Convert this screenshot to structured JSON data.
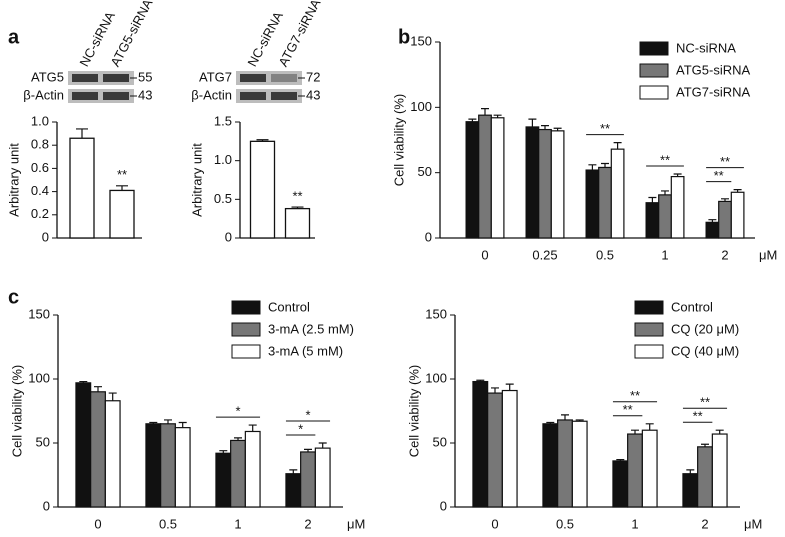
{
  "chart_data": [
    {
      "type": "bar",
      "panel": "a",
      "blot": {
        "rows": [
          "ATG5",
          "β-Actin"
        ],
        "sizes": [
          55,
          43
        ]
      },
      "categories": [
        "NC-siRNA",
        "ATG5-siRNA"
      ],
      "values": [
        0.86,
        0.41
      ],
      "errors": [
        0.08,
        0.04
      ],
      "color": "#ffffff",
      "ylabel": "Arbitrary unit",
      "ylim": [
        0,
        1.0
      ],
      "yticks": [
        0,
        0.2,
        0.4,
        0.6,
        0.8,
        {
          "value": 1,
          "label": "1.0"
        }
      ],
      "annotations": [
        {
          "label": "**",
          "category": 1
        }
      ]
    },
    {
      "type": "bar",
      "blot": {
        "rows": [
          "ATG7",
          "β-Actin"
        ],
        "sizes": [
          72,
          43
        ]
      },
      "categories": [
        "NC-siRNA",
        "ATG7-siRNA"
      ],
      "values": [
        1.25,
        0.38
      ],
      "errors": [
        0.02,
        0.02
      ],
      "color": "#ffffff",
      "ylabel": "Arbitrary unit",
      "ylim": [
        0,
        1.5
      ],
      "yticks": [
        0,
        0.5,
        {
          "value": 1,
          "label": "1.0"
        },
        1.5
      ],
      "annotations": [
        {
          "label": "**",
          "category": 1
        }
      ]
    },
    {
      "type": "grouped-bar",
      "panel": "b",
      "categories": [
        "0",
        "0.25",
        "0.5",
        "1",
        "2"
      ],
      "unit": "μM",
      "series": [
        {
          "name": "NC-siRNA",
          "color": "#111111",
          "values": [
            89,
            85,
            52,
            27,
            12
          ],
          "errors": [
            2,
            6,
            4,
            4,
            2
          ]
        },
        {
          "name": "ATG5-siRNA",
          "color": "#777777",
          "values": [
            94,
            83,
            54,
            33,
            28
          ],
          "errors": [
            5,
            3,
            3,
            3,
            2
          ]
        },
        {
          "name": "ATG7-siRNA",
          "color": "#ffffff",
          "values": [
            92,
            82,
            68,
            47,
            35
          ],
          "errors": [
            2,
            2,
            5,
            2,
            2
          ]
        }
      ],
      "ylabel": "Cell viability (%)",
      "ylim": [
        0,
        150
      ],
      "yticks": [
        0,
        50,
        100,
        150
      ],
      "legend": "top-right",
      "annotations": [
        {
          "label": "**",
          "category": 2,
          "between": [
            0,
            2
          ]
        },
        {
          "label": "**",
          "category": 3,
          "between": [
            0,
            2
          ]
        },
        {
          "label": "**",
          "category": 4,
          "between": [
            0,
            1
          ]
        },
        {
          "label": "**",
          "category": 4,
          "between": [
            0,
            2
          ]
        }
      ]
    },
    {
      "type": "grouped-bar",
      "panel": "c",
      "categories": [
        "0",
        "0.5",
        "1",
        "2"
      ],
      "unit": "μM",
      "series": [
        {
          "name": "Control",
          "color": "#111111",
          "values": [
            97,
            65,
            42,
            26
          ],
          "errors": [
            1,
            1,
            2,
            3
          ]
        },
        {
          "name": "3-mA (2.5 mM)",
          "color": "#777777",
          "values": [
            90,
            65,
            52,
            43
          ],
          "errors": [
            4,
            3,
            2,
            2
          ]
        },
        {
          "name": "3-mA (5 mM)",
          "color": "#ffffff",
          "values": [
            83,
            62,
            59,
            46
          ],
          "errors": [
            6,
            4,
            5,
            4
          ]
        }
      ],
      "ylabel": "Cell viability (%)",
      "ylim": [
        0,
        150
      ],
      "yticks": [
        0,
        50,
        100,
        150
      ],
      "legend": "top-left",
      "annotations": [
        {
          "label": "*",
          "category": 2,
          "between": [
            0,
            2
          ]
        },
        {
          "label": "*",
          "category": 3,
          "between": [
            0,
            1
          ]
        },
        {
          "label": "*",
          "category": 3,
          "between": [
            0,
            2
          ]
        }
      ]
    },
    {
      "type": "grouped-bar",
      "categories": [
        "0",
        "0.5",
        "1",
        "2"
      ],
      "unit": "μM",
      "series": [
        {
          "name": "Control",
          "color": "#111111",
          "values": [
            98,
            65,
            36,
            26
          ],
          "errors": [
            1,
            1,
            1,
            3
          ]
        },
        {
          "name": "CQ (20 μM)",
          "color": "#777777",
          "values": [
            89,
            68,
            57,
            47
          ],
          "errors": [
            4,
            4,
            3,
            2
          ]
        },
        {
          "name": "CQ (40 μM)",
          "color": "#ffffff",
          "values": [
            91,
            67,
            60,
            57
          ],
          "errors": [
            5,
            1,
            5,
            3
          ]
        }
      ],
      "ylabel": "Cell viability (%)",
      "ylim": [
        0,
        150
      ],
      "yticks": [
        0,
        50,
        100,
        150
      ],
      "legend": "top-right",
      "annotations": [
        {
          "label": "**",
          "category": 2,
          "between": [
            0,
            1
          ]
        },
        {
          "label": "**",
          "category": 2,
          "between": [
            0,
            2
          ]
        },
        {
          "label": "**",
          "category": 3,
          "between": [
            0,
            1
          ]
        },
        {
          "label": "**",
          "category": 3,
          "between": [
            0,
            2
          ]
        }
      ]
    }
  ]
}
